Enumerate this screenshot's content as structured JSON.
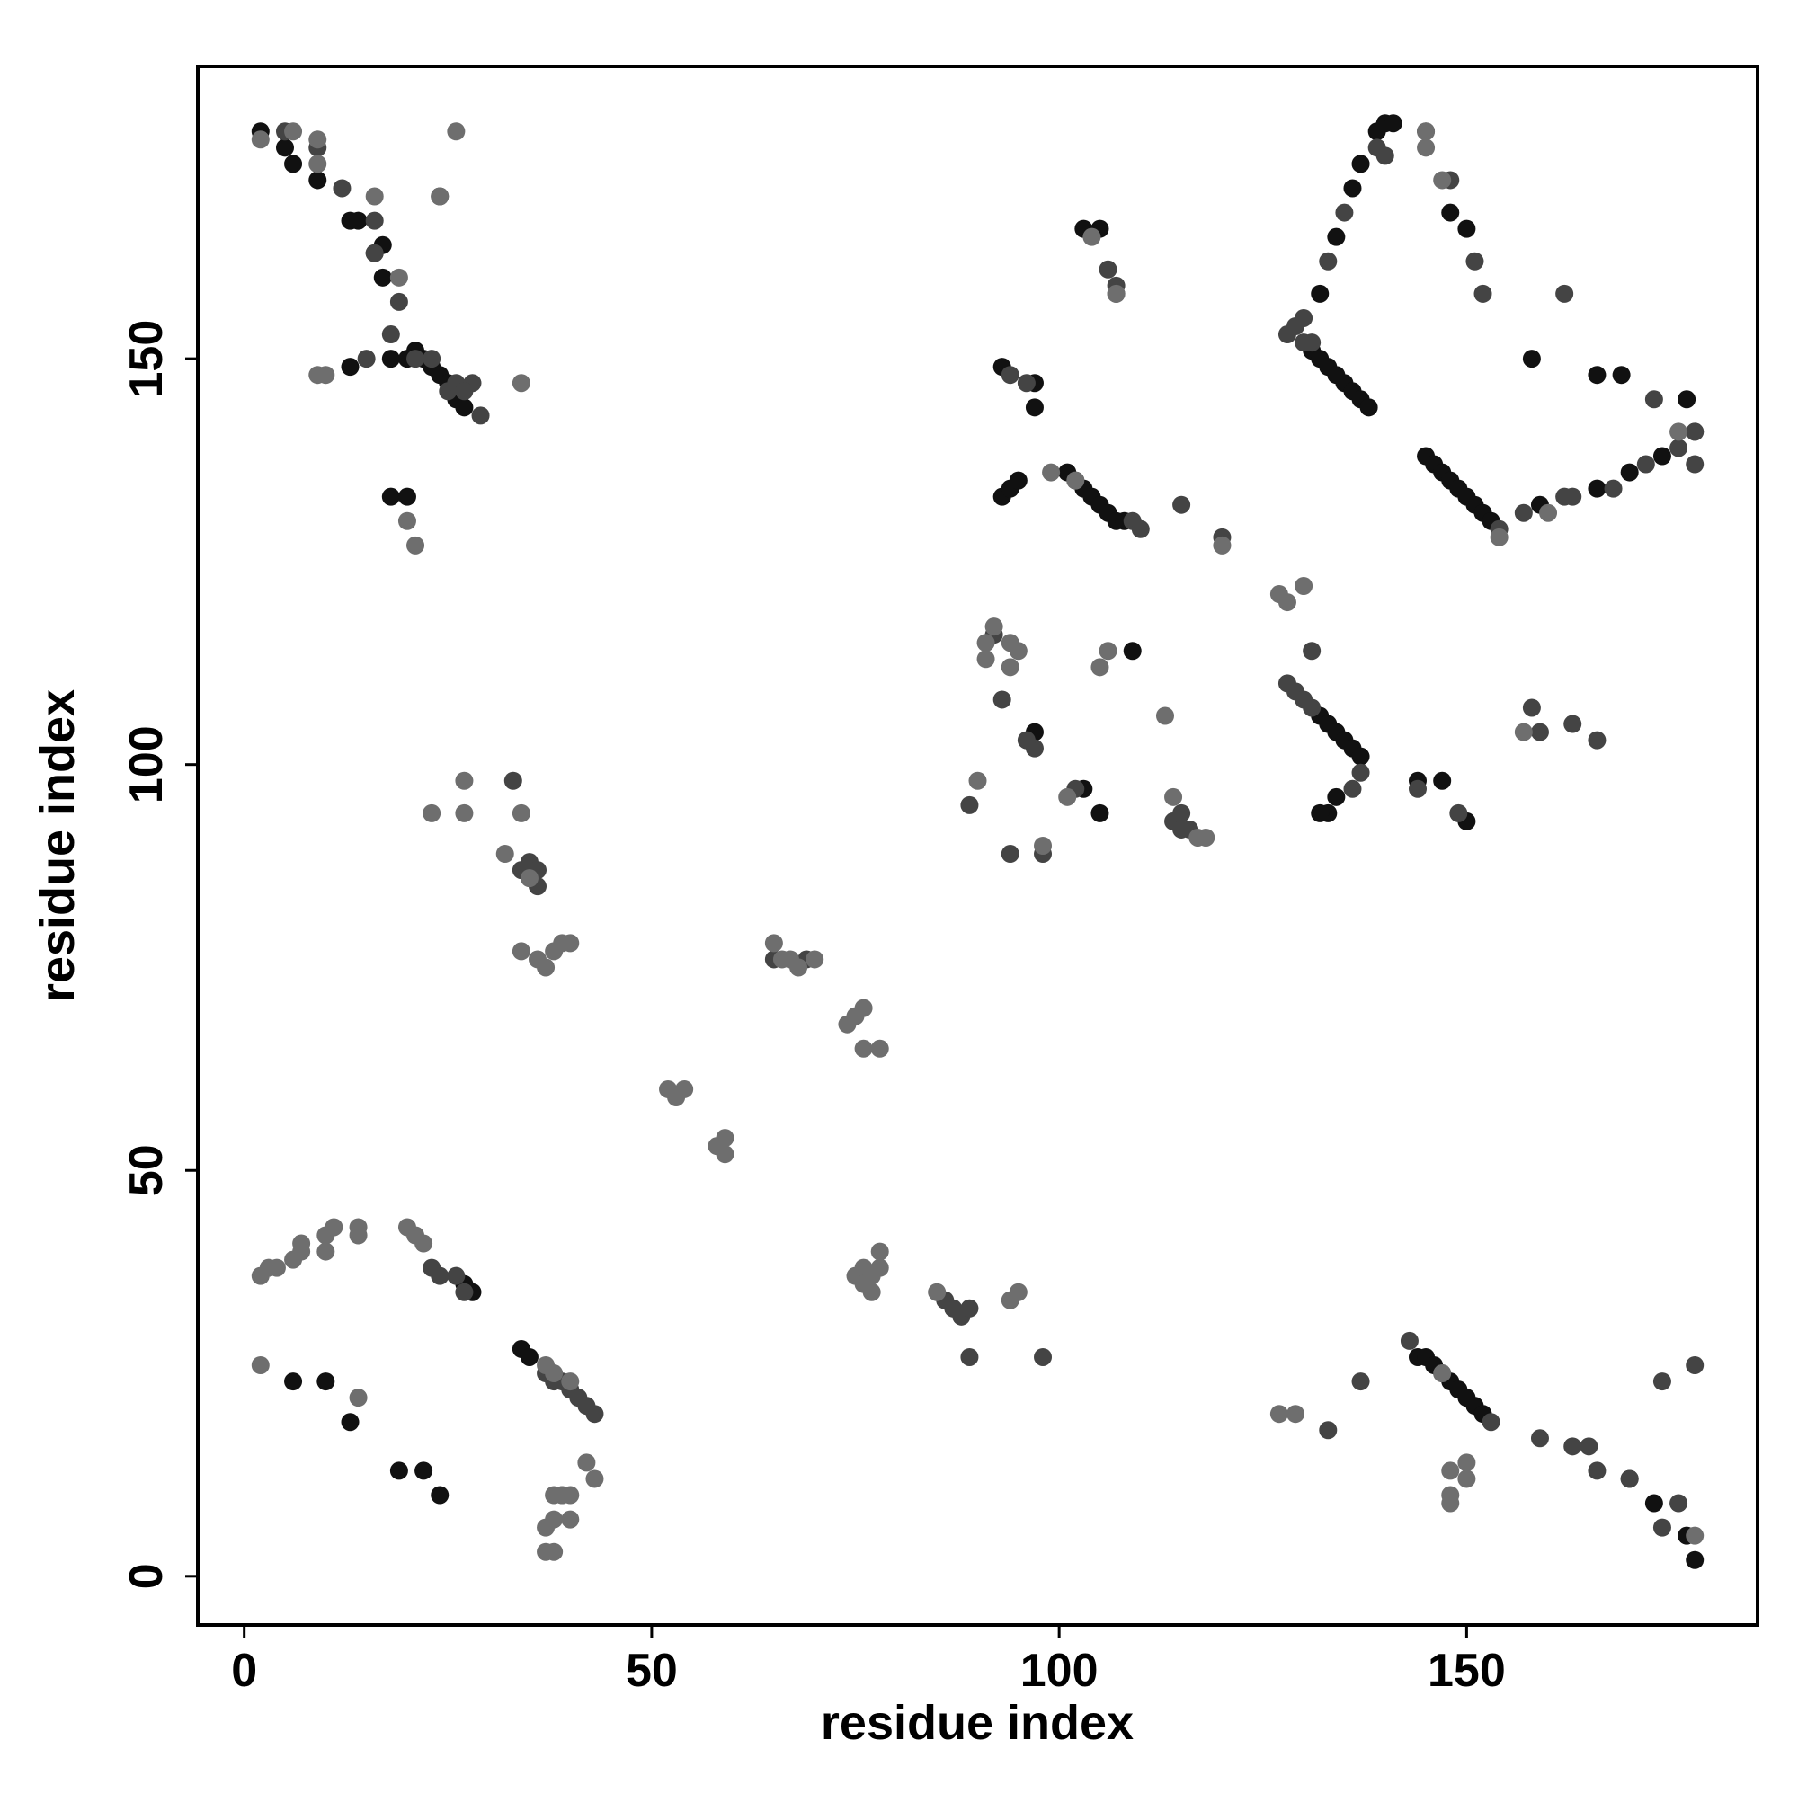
{
  "chart_data": {
    "type": "scatter",
    "x_label": "residue index",
    "y_label": "residue index",
    "xlim": [
      -5.7,
      185.7
    ],
    "ylim": [
      -6,
      186
    ],
    "xticks": [
      0,
      50,
      100,
      150
    ],
    "yticks": [
      0,
      50,
      100,
      150
    ],
    "grid": false,
    "series": [
      {
        "color": "#111111",
        "x": [
          2,
          5,
          6,
          9,
          13,
          14,
          16,
          17,
          17,
          18,
          20,
          21,
          22,
          23,
          24,
          25,
          26,
          27,
          18,
          20,
          13,
          131,
          132,
          133,
          134,
          135,
          136,
          137,
          138,
          132,
          134,
          136,
          137,
          139,
          140,
          141,
          148,
          150,
          158,
          166,
          169,
          177,
          145,
          146,
          147,
          148,
          149,
          150,
          151,
          152,
          153,
          159,
          166,
          170,
          174,
          93,
          97,
          97,
          93,
          94,
          95,
          101,
          102,
          103,
          104,
          105,
          106,
          107,
          108,
          103,
          105,
          109,
          97,
          103,
          105,
          132,
          133,
          134,
          135,
          136,
          137,
          134,
          133,
          132,
          144,
          147,
          150,
          6,
          10,
          13,
          19,
          22,
          24,
          27,
          28,
          34,
          35,
          144,
          145,
          146,
          147,
          148,
          149,
          150,
          151,
          152,
          170,
          173,
          177,
          178
        ],
        "values": [
          178,
          176,
          174,
          172,
          167,
          167,
          163,
          160,
          164,
          150,
          150,
          151,
          150,
          149,
          148,
          147,
          145,
          144,
          133,
          133,
          149,
          151,
          150,
          149,
          148,
          147,
          146,
          145,
          144,
          158,
          165,
          171,
          174,
          178,
          179,
          179,
          168,
          166,
          150,
          148,
          148,
          145,
          138,
          137,
          136,
          135,
          134,
          133,
          132,
          131,
          130,
          132,
          134,
          136,
          138,
          149,
          147,
          144,
          133,
          134,
          135,
          136,
          135,
          134,
          133,
          132,
          131,
          130,
          130,
          166,
          166,
          114,
          104,
          97,
          94,
          106,
          105,
          104,
          103,
          102,
          101,
          96,
          94,
          94,
          98,
          98,
          93,
          24,
          24,
          19,
          13,
          13,
          10,
          36,
          35,
          28,
          27,
          27,
          27,
          26,
          25,
          24,
          23,
          22,
          21,
          20,
          12,
          9,
          5,
          2
        ]
      },
      {
        "color": "#444444",
        "x": [
          5,
          9,
          12,
          16,
          16,
          19,
          21,
          23,
          25,
          26,
          28,
          29,
          24,
          18,
          15,
          27,
          128,
          129,
          130,
          131,
          130,
          133,
          135,
          139,
          140,
          145,
          148,
          151,
          152,
          162,
          162,
          173,
          178,
          154,
          157,
          163,
          168,
          172,
          176,
          178,
          178,
          96,
          94,
          109,
          110,
          115,
          120,
          106,
          107,
          107,
          92,
          93,
          97,
          96,
          89,
          94,
          98,
          102,
          114,
          115,
          115,
          116,
          128,
          129,
          130,
          131,
          137,
          136,
          131,
          144,
          149,
          158,
          159,
          163,
          166,
          23,
          24,
          26,
          27,
          37,
          38,
          39,
          40,
          41,
          42,
          43,
          86,
          87,
          88,
          89,
          89,
          98,
          133,
          137,
          143,
          153,
          159,
          163,
          165,
          166,
          170,
          174,
          176,
          178,
          174,
          33,
          34,
          35,
          36,
          36,
          65,
          69
        ],
        "values": [
          178,
          176,
          171,
          167,
          163,
          157,
          150,
          150,
          146,
          147,
          147,
          143,
          170,
          153,
          150,
          146,
          153,
          154,
          152,
          152,
          155,
          162,
          168,
          176,
          175,
          178,
          172,
          162,
          158,
          158,
          133,
          145,
          141,
          129,
          131,
          133,
          134,
          137,
          139,
          141,
          137,
          147,
          148,
          130,
          129,
          132,
          128,
          161,
          159,
          158,
          116,
          108,
          102,
          103,
          95,
          89,
          89,
          97,
          93,
          94,
          92,
          92,
          110,
          109,
          108,
          107,
          99,
          97,
          114,
          97,
          94,
          107,
          104,
          105,
          103,
          38,
          37,
          37,
          35,
          25,
          24,
          24,
          23,
          22,
          21,
          20,
          34,
          33,
          32,
          33,
          27,
          27,
          18,
          24,
          29,
          19,
          17,
          16,
          16,
          13,
          12,
          6,
          9,
          26,
          24,
          98,
          87,
          88,
          87,
          85,
          76,
          76
        ]
      },
      {
        "color": "#6e6e6e",
        "x": [
          2,
          6,
          9,
          9,
          10,
          9,
          24,
          26,
          34,
          21,
          20,
          19,
          16,
          104,
          107,
          102,
          99,
          127,
          128,
          130,
          120,
          92,
          91,
          94,
          94,
          91,
          95,
          98,
          105,
          106,
          114,
          117,
          118,
          113,
          145,
          145,
          147,
          157,
          154,
          160,
          176,
          147,
          148,
          150,
          2,
          3,
          4,
          6,
          7,
          7,
          10,
          10,
          11,
          14,
          14,
          20,
          21,
          22,
          2,
          14,
          37,
          38,
          39,
          40,
          42,
          43,
          40,
          39,
          38,
          37,
          38,
          37,
          38,
          40,
          75,
          76,
          77,
          78,
          77,
          76,
          78,
          85,
          94,
          95,
          127,
          129,
          148,
          148,
          150,
          178,
          27,
          23,
          27,
          32,
          34,
          35,
          34,
          36,
          37,
          38,
          39,
          40,
          65,
          66,
          67,
          68,
          70,
          74,
          75,
          76,
          76,
          78,
          52,
          53,
          54,
          58,
          59,
          59,
          101,
          90
        ],
        "values": [
          177,
          178,
          177,
          174,
          148,
          148,
          170,
          178,
          147,
          127,
          130,
          160,
          170,
          165,
          158,
          135,
          136,
          121,
          120,
          122,
          127,
          117,
          113,
          115,
          112,
          115,
          114,
          90,
          112,
          114,
          96,
          91,
          91,
          106,
          176,
          178,
          172,
          104,
          128,
          131,
          141,
          25,
          10,
          12,
          37,
          38,
          38,
          39,
          40,
          41,
          40,
          42,
          43,
          42,
          43,
          43,
          42,
          41,
          26,
          22,
          6,
          7,
          10,
          10,
          14,
          12,
          7,
          10,
          10,
          3,
          3,
          26,
          25,
          24,
          37,
          38,
          37,
          40,
          35,
          36,
          38,
          35,
          34,
          35,
          20,
          20,
          9,
          13,
          14,
          5,
          98,
          94,
          94,
          89,
          94,
          86,
          77,
          76,
          75,
          77,
          78,
          78,
          78,
          76,
          76,
          75,
          76,
          68,
          69,
          70,
          65,
          65,
          60,
          59,
          60,
          53,
          54,
          52,
          96,
          98
        ]
      }
    ]
  }
}
